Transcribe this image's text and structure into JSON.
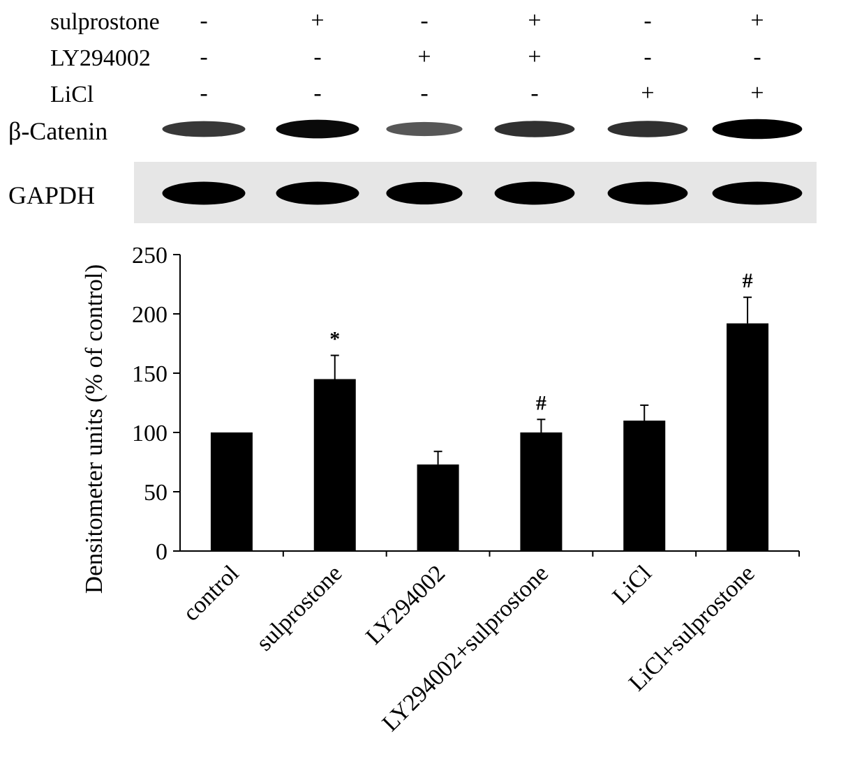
{
  "treatments": {
    "rows": [
      {
        "label": "sulprostone",
        "signs": [
          "-",
          "+",
          "-",
          "+",
          "-",
          "+"
        ]
      },
      {
        "label": "LY294002",
        "signs": [
          "-",
          "-",
          "+",
          "+",
          "-",
          "-"
        ]
      },
      {
        "label": "LiCl",
        "signs": [
          "-",
          "-",
          "-",
          "-",
          "+",
          "+"
        ]
      }
    ]
  },
  "blots": [
    {
      "label": "β-Catenin",
      "band_intensity": [
        0.55,
        0.85,
        0.35,
        0.6,
        0.6,
        1.0
      ]
    },
    {
      "label": "GAPDH",
      "band_intensity": [
        1.0,
        1.0,
        0.95,
        1.0,
        1.0,
        1.0
      ]
    }
  ],
  "colors": {
    "bar": "#000000",
    "band": "#000000",
    "blot_bg": "#e8e8e8"
  },
  "chart_data": {
    "type": "bar",
    "title": "",
    "xlabel": "",
    "ylabel": "Densitometer units (% of control)",
    "categories": [
      "control",
      "sulprostone",
      "LY294002",
      "LY294002+sulprostone",
      "LiCl",
      "LiCl+sulprostone"
    ],
    "values": [
      100,
      145,
      73,
      100,
      110,
      192
    ],
    "errors": [
      0,
      20,
      11,
      11,
      13,
      22
    ],
    "annotations": [
      "",
      "*",
      "",
      "#",
      "",
      "#"
    ],
    "ylim": [
      0,
      250
    ],
    "yticks": [
      0,
      50,
      100,
      150,
      200,
      250
    ],
    "grid": false,
    "legend": "none"
  }
}
